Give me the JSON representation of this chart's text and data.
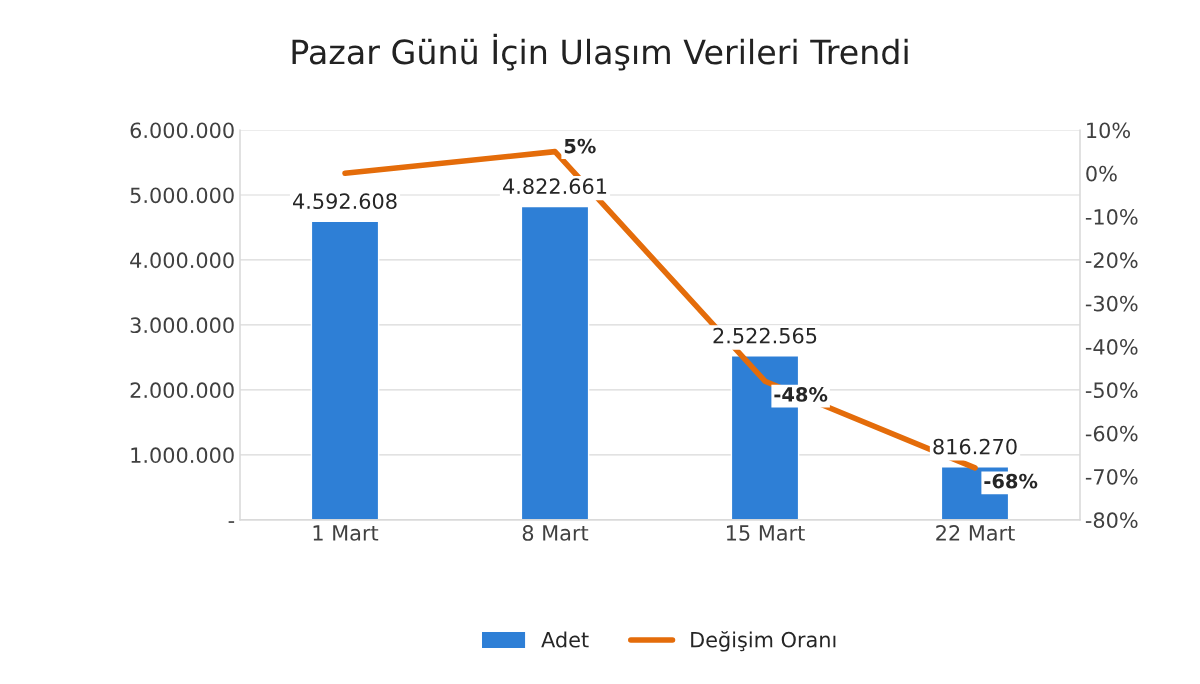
{
  "chart_data": {
    "type": "bar",
    "title": "Pazar Günü İçin Ulaşım Verileri Trendi",
    "categories": [
      "1 Mart",
      "8 Mart",
      "15 Mart",
      "22 Mart"
    ],
    "series": [
      {
        "name": "Adet",
        "color": "#2e7fd6",
        "values": [
          4592608,
          4822661,
          2522565,
          816270
        ],
        "value_labels": [
          "4.592.608",
          "4.822.661",
          "2.522.565",
          "816.270"
        ]
      },
      {
        "name": "Değişim Oranı",
        "type": "line",
        "axis": "y2",
        "color": "#e46c0a",
        "values": [
          0,
          5,
          -48,
          -68
        ],
        "value_labels": [
          null,
          "5%",
          "-48%",
          "-68%"
        ]
      }
    ],
    "ylim": [
      0,
      6000000
    ],
    "yticks": [
      {
        "value": 0,
        "label": "-"
      },
      {
        "value": 1000000,
        "label": "1.000.000"
      },
      {
        "value": 2000000,
        "label": "2.000.000"
      },
      {
        "value": 3000000,
        "label": "3.000.000"
      },
      {
        "value": 4000000,
        "label": "4.000.000"
      },
      {
        "value": 5000000,
        "label": "5.000.000"
      },
      {
        "value": 6000000,
        "label": "6.000.000"
      }
    ],
    "y2lim": [
      -80,
      10
    ],
    "y2ticks": [
      {
        "value": -80,
        "label": "-80%"
      },
      {
        "value": -70,
        "label": "-70%"
      },
      {
        "value": -60,
        "label": "-60%"
      },
      {
        "value": -50,
        "label": "-50%"
      },
      {
        "value": -40,
        "label": "-40%"
      },
      {
        "value": -30,
        "label": "-30%"
      },
      {
        "value": -20,
        "label": "-20%"
      },
      {
        "value": -10,
        "label": "-10%"
      },
      {
        "value": 0,
        "label": "0%"
      },
      {
        "value": 10,
        "label": "10%"
      }
    ],
    "grid": "y",
    "legend": "bottom",
    "marker": "none",
    "line_style": "solid"
  }
}
